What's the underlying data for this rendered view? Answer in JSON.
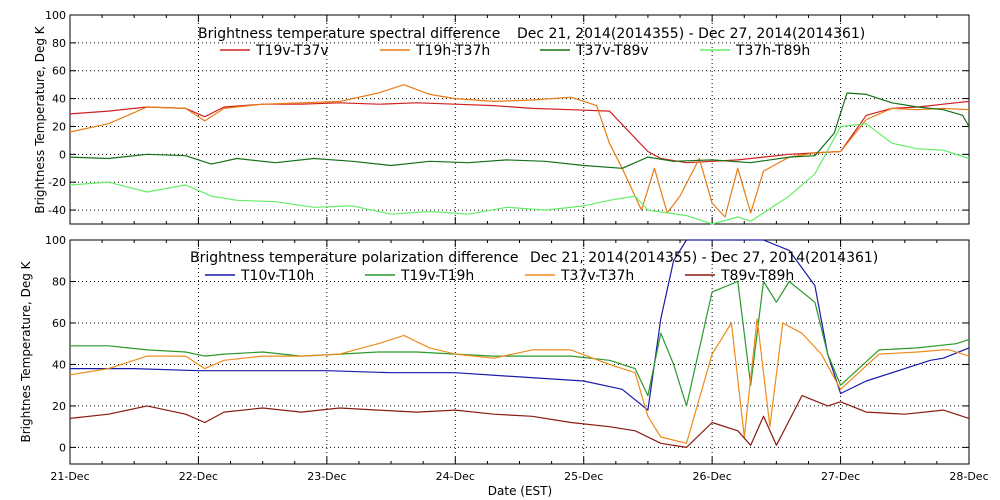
{
  "chart_data": [
    {
      "type": "line",
      "title": "Brightness temperature spectral difference",
      "date_range": "Dec 21, 2014(2014355) - Dec 27, 2014(2014361)",
      "ylabel": "Brightness Temperature, Deg K",
      "xlabel": "",
      "ylim": [
        -50,
        100
      ],
      "xlim": [
        0,
        7
      ],
      "yticks": [
        -40,
        -20,
        0,
        20,
        40,
        60,
        80,
        100
      ],
      "grid": true,
      "legend_position": "top",
      "series": [
        {
          "name": "T19v-T37v",
          "color": "#d02020",
          "x": [
            0,
            0.3,
            0.6,
            0.9,
            1.05,
            1.2,
            1.5,
            1.8,
            2.1,
            2.4,
            2.7,
            3.0,
            3.3,
            3.6,
            3.9,
            4.2,
            4.5,
            4.6,
            4.8,
            5.0,
            5.2,
            5.4,
            5.6,
            5.8,
            6.0,
            6.2,
            6.4,
            6.6,
            6.8,
            7.0
          ],
          "values": [
            29,
            31,
            34,
            33,
            27,
            34,
            36,
            36,
            37,
            36,
            37,
            36,
            35,
            33,
            32,
            31,
            2,
            -3,
            -6,
            -5,
            -4,
            -2,
            0,
            1,
            2,
            28,
            33,
            34,
            36,
            38
          ]
        },
        {
          "name": "T19h-T37h",
          "color": "#e87c14",
          "x": [
            0,
            0.3,
            0.6,
            0.9,
            1.05,
            1.2,
            1.5,
            1.8,
            2.1,
            2.4,
            2.6,
            2.8,
            3.0,
            3.3,
            3.6,
            3.9,
            4.1,
            4.2,
            4.3,
            4.45,
            4.55,
            4.65,
            4.75,
            4.9,
            5.0,
            5.1,
            5.2,
            5.3,
            5.4,
            5.6,
            5.8,
            6.0,
            6.2,
            6.4,
            6.6,
            6.8,
            7.0
          ],
          "values": [
            16,
            22,
            34,
            33,
            24,
            33,
            36,
            37,
            38,
            44,
            50,
            43,
            40,
            38,
            39,
            41,
            35,
            8,
            -10,
            -40,
            -10,
            -42,
            -30,
            -3,
            -35,
            -45,
            -10,
            -42,
            -12,
            -2,
            1,
            2,
            25,
            33,
            32,
            33,
            32
          ]
        },
        {
          "name": "T37v-T89v",
          "color": "#167016",
          "x": [
            0,
            0.3,
            0.6,
            0.9,
            1.1,
            1.3,
            1.6,
            1.9,
            2.2,
            2.5,
            2.8,
            3.1,
            3.4,
            3.7,
            4.0,
            4.3,
            4.5,
            4.7,
            5.0,
            5.3,
            5.6,
            5.8,
            5.95,
            6.05,
            6.2,
            6.4,
            6.6,
            6.8,
            6.95,
            7.0
          ],
          "values": [
            -2,
            -3,
            0,
            -1,
            -7,
            -3,
            -6,
            -3,
            -5,
            -8,
            -5,
            -6,
            -4,
            -5,
            -8,
            -10,
            -2,
            -5,
            -4,
            -6,
            -2,
            -1,
            15,
            44,
            43,
            37,
            34,
            32,
            28,
            20
          ]
        },
        {
          "name": "T37h-T89h",
          "color": "#66ee66",
          "x": [
            0,
            0.3,
            0.6,
            0.9,
            1.1,
            1.3,
            1.6,
            1.9,
            2.2,
            2.5,
            2.8,
            3.1,
            3.4,
            3.7,
            4.0,
            4.2,
            4.4,
            4.5,
            4.65,
            4.8,
            5.0,
            5.2,
            5.3,
            5.4,
            5.6,
            5.8,
            6.0,
            6.2,
            6.4,
            6.6,
            6.8,
            7.0
          ],
          "values": [
            -22,
            -20,
            -27,
            -22,
            -30,
            -33,
            -34,
            -38,
            -37,
            -43,
            -41,
            -43,
            -38,
            -40,
            -37,
            -33,
            -30,
            -40,
            -42,
            -44,
            -50,
            -45,
            -48,
            -42,
            -30,
            -14,
            20,
            22,
            8,
            4,
            3,
            -3
          ]
        }
      ]
    },
    {
      "type": "line",
      "title": "Brightness temperature polarization difference",
      "date_range": "Dec 21, 2014(2014355) - Dec 27, 2014(2014361)",
      "ylabel": "Brightnes Temperature, Deg K",
      "xlabel": "Date (EST)",
      "ylim": [
        -8,
        100
      ],
      "xlim": [
        0,
        7
      ],
      "yticks": [
        0,
        20,
        40,
        60,
        80,
        100
      ],
      "xticks": [
        "21-Dec",
        "22-Dec",
        "23-Dec",
        "24-Dec",
        "25-Dec",
        "26-Dec",
        "27-Dec",
        "28-Dec"
      ],
      "grid": true,
      "legend_position": "top",
      "series": [
        {
          "name": "T10v-T10h",
          "color": "#1a1aaa",
          "x": [
            0,
            0.5,
            1.0,
            1.5,
            2.0,
            2.5,
            3.0,
            3.5,
            4.0,
            4.3,
            4.5,
            4.6,
            4.7,
            4.8,
            5.0,
            5.2,
            5.4,
            5.6,
            5.8,
            5.9,
            6.0,
            6.2,
            6.5,
            6.7,
            6.8,
            7.0
          ],
          "values": [
            38,
            38,
            37,
            37,
            37,
            36,
            36,
            34,
            32,
            28,
            18,
            62,
            90,
            100,
            100,
            100,
            100,
            95,
            78,
            45,
            26,
            32,
            38,
            42,
            43,
            48
          ]
        },
        {
          "name": "T19v-T19h",
          "color": "#2a9a2a",
          "x": [
            0,
            0.3,
            0.6,
            0.9,
            1.05,
            1.2,
            1.5,
            1.8,
            2.1,
            2.4,
            2.7,
            3.0,
            3.3,
            3.6,
            3.9,
            4.2,
            4.4,
            4.5,
            4.6,
            4.7,
            4.8,
            5.0,
            5.2,
            5.3,
            5.4,
            5.5,
            5.6,
            5.8,
            5.9,
            6.0,
            6.3,
            6.6,
            6.9,
            7.0
          ],
          "values": [
            49,
            49,
            47,
            46,
            44,
            45,
            46,
            44,
            45,
            46,
            46,
            45,
            44,
            44,
            44,
            42,
            38,
            25,
            55,
            40,
            20,
            75,
            80,
            30,
            80,
            70,
            80,
            70,
            45,
            30,
            47,
            48,
            50,
            52
          ]
        },
        {
          "name": "T37v-T37h",
          "color": "#ee8c1c",
          "x": [
            0,
            0.3,
            0.6,
            0.9,
            1.05,
            1.2,
            1.5,
            1.8,
            2.1,
            2.4,
            2.6,
            2.8,
            3.0,
            3.3,
            3.6,
            3.9,
            4.2,
            4.4,
            4.5,
            4.6,
            4.8,
            5.0,
            5.15,
            5.25,
            5.35,
            5.45,
            5.55,
            5.7,
            5.85,
            6.0,
            6.3,
            6.6,
            6.8,
            6.85,
            7.0
          ],
          "values": [
            35,
            38,
            44,
            44,
            38,
            42,
            44,
            44,
            45,
            50,
            54,
            48,
            45,
            43,
            47,
            47,
            40,
            36,
            15,
            5,
            2,
            45,
            60,
            5,
            62,
            10,
            60,
            55,
            45,
            28,
            45,
            46,
            47,
            47,
            44
          ]
        },
        {
          "name": "T89v-T89h",
          "color": "#8a1a10",
          "x": [
            0,
            0.3,
            0.6,
            0.9,
            1.05,
            1.2,
            1.5,
            1.8,
            2.1,
            2.4,
            2.7,
            3.0,
            3.3,
            3.6,
            3.9,
            4.2,
            4.4,
            4.6,
            4.8,
            5.0,
            5.2,
            5.3,
            5.4,
            5.5,
            5.7,
            5.9,
            6.0,
            6.2,
            6.5,
            6.8,
            7.0
          ],
          "values": [
            14,
            16,
            20,
            16,
            12,
            17,
            19,
            17,
            19,
            18,
            17,
            18,
            16,
            15,
            12,
            10,
            8,
            2,
            0,
            12,
            8,
            1,
            15,
            1,
            25,
            20,
            22,
            17,
            16,
            18,
            14
          ]
        }
      ]
    }
  ]
}
